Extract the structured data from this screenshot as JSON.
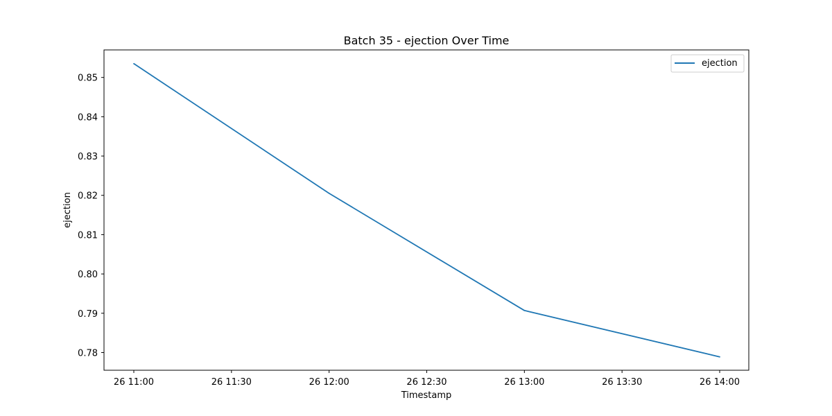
{
  "chart_data": {
    "type": "line",
    "title": "Batch 35 - ejection Over Time",
    "xlabel": "Timestamp",
    "ylabel": "ejection",
    "x": [
      "26 11:00",
      "26 12:00",
      "26 13:00",
      "26 14:00"
    ],
    "x_ticks": [
      "26 11:00",
      "26 11:30",
      "26 12:00",
      "26 12:30",
      "26 13:00",
      "26 13:30",
      "26 14:00"
    ],
    "y_ticks": [
      "0.78",
      "0.79",
      "0.80",
      "0.81",
      "0.82",
      "0.83",
      "0.84",
      "0.85"
    ],
    "ylim": [
      0.7755,
      0.857
    ],
    "series": [
      {
        "name": "ejection",
        "color": "#1f77b4",
        "values": [
          0.8535,
          0.8205,
          0.7907,
          0.7789
        ]
      }
    ],
    "legend": {
      "position": "top-right"
    },
    "grid": false
  }
}
